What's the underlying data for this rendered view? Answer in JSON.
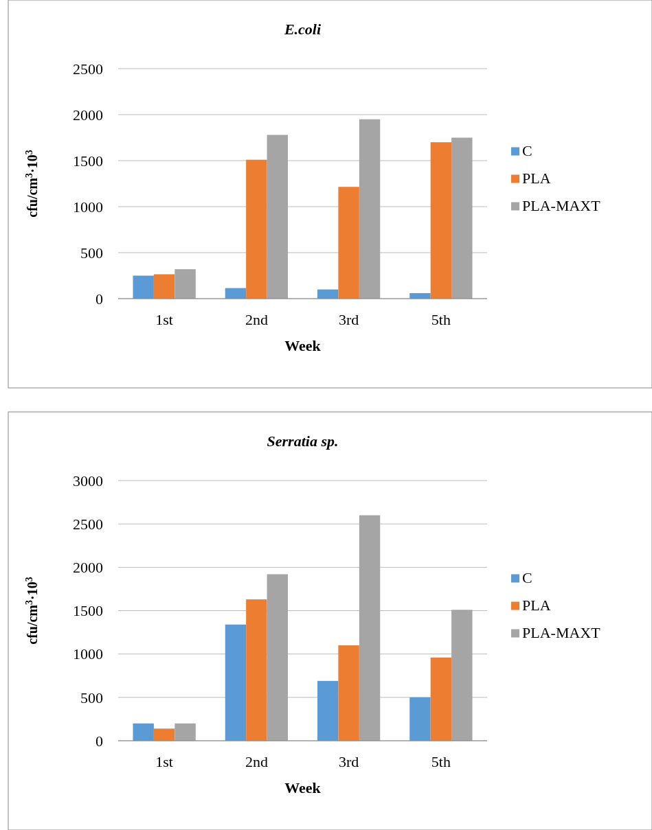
{
  "chart_data": [
    {
      "type": "bar",
      "title": "E.coli",
      "xlabel": "Week",
      "ylabel": "cfu/cm$^{3}$·10$^{3}$",
      "categories": [
        "1st",
        "2nd",
        "3rd",
        "5th"
      ],
      "series": [
        {
          "name": "C",
          "color": "#5b9bd5",
          "values": [
            250,
            115,
            100,
            60
          ]
        },
        {
          "name": "PLA",
          "color": "#ed7d31",
          "values": [
            265,
            1510,
            1215,
            1700
          ]
        },
        {
          "name": "PLA-MAXT",
          "color": "#a5a5a5",
          "values": [
            320,
            1780,
            1950,
            1750
          ]
        }
      ],
      "ylim": [
        0,
        2500
      ],
      "yticks": [
        0,
        500,
        1000,
        1500,
        2000,
        2500
      ],
      "grid": "y",
      "legend": "right"
    },
    {
      "type": "bar",
      "title": "Serratia sp.",
      "xlabel": "Week",
      "ylabel": "cfu/cm$^{3}$·10$^{3}$",
      "categories": [
        "1st",
        "2nd",
        "3rd",
        "5th"
      ],
      "series": [
        {
          "name": "C",
          "color": "#5b9bd5",
          "values": [
            200,
            1340,
            690,
            500
          ]
        },
        {
          "name": "PLA",
          "color": "#ed7d31",
          "values": [
            140,
            1630,
            1100,
            960
          ]
        },
        {
          "name": "PLA-MAXT",
          "color": "#a5a5a5",
          "values": [
            200,
            1920,
            2600,
            1510
          ]
        }
      ],
      "ylim": [
        0,
        3000
      ],
      "yticks": [
        0,
        500,
        1000,
        1500,
        2000,
        2500,
        3000
      ],
      "grid": "y",
      "legend": "right"
    }
  ]
}
